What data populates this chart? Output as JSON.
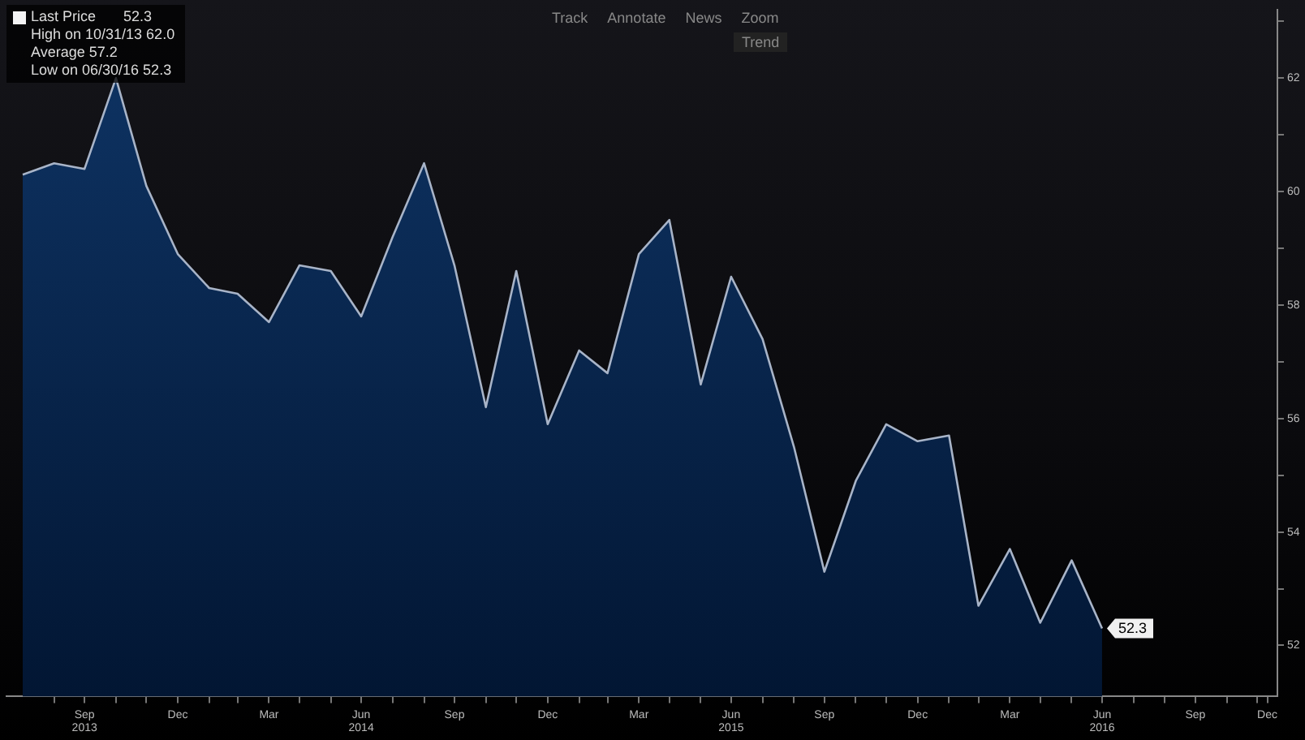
{
  "chart_data": {
    "type": "area",
    "x": [
      "2013-07-31",
      "2013-08-31",
      "2013-09-30",
      "2013-10-31",
      "2013-11-30",
      "2013-12-31",
      "2014-01-31",
      "2014-02-28",
      "2014-03-31",
      "2014-04-30",
      "2014-05-31",
      "2014-06-30",
      "2014-07-31",
      "2014-08-31",
      "2014-09-30",
      "2014-10-31",
      "2014-11-30",
      "2014-12-31",
      "2015-01-31",
      "2015-02-28",
      "2015-03-31",
      "2015-04-30",
      "2015-05-31",
      "2015-06-30",
      "2015-07-31",
      "2015-08-31",
      "2015-09-30",
      "2015-10-31",
      "2015-11-30",
      "2015-12-31",
      "2016-01-31",
      "2016-02-29",
      "2016-03-31",
      "2016-04-30",
      "2016-05-31",
      "2016-06-30"
    ],
    "series": [
      {
        "name": "Last Price",
        "color": "#0f3566",
        "values": [
          60.3,
          60.5,
          60.4,
          62.0,
          60.1,
          58.9,
          58.3,
          58.2,
          57.7,
          58.7,
          58.6,
          57.8,
          59.2,
          60.5,
          58.7,
          56.2,
          58.6,
          55.9,
          57.2,
          56.8,
          58.9,
          59.5,
          56.6,
          58.5,
          57.4,
          55.5,
          53.3,
          54.9,
          55.9,
          55.6,
          55.7,
          52.7,
          53.7,
          52.4,
          53.5,
          52.3
        ],
        "value_labels": [
          null,
          null,
          null,
          null,
          null,
          null,
          null,
          null,
          null,
          null,
          null,
          null,
          null,
          null,
          null,
          null,
          null,
          null,
          null,
          null,
          null,
          null,
          null,
          null,
          null,
          null,
          null,
          null,
          null,
          null,
          null,
          null,
          null,
          null,
          null,
          "52.3"
        ]
      }
    ],
    "xlim": [
      "2013-07-15",
      "2016-12-20"
    ],
    "xticks": [
      {
        "value": "2013-08-31",
        "label": null
      },
      {
        "value": "2013-09-30",
        "label": "Sep 2013"
      },
      {
        "value": "2013-10-31",
        "label": null
      },
      {
        "value": "2013-11-30",
        "label": null
      },
      {
        "value": "2013-12-31",
        "label": "Dec"
      },
      {
        "value": "2014-01-31",
        "label": null
      },
      {
        "value": "2014-02-28",
        "label": null
      },
      {
        "value": "2014-03-31",
        "label": "Mar"
      },
      {
        "value": "2014-04-30",
        "label": null
      },
      {
        "value": "2014-05-31",
        "label": null
      },
      {
        "value": "2014-06-30",
        "label": "Jun 2014"
      },
      {
        "value": "2014-07-31",
        "label": null
      },
      {
        "value": "2014-08-31",
        "label": null
      },
      {
        "value": "2014-09-30",
        "label": "Sep"
      },
      {
        "value": "2014-10-31",
        "label": null
      },
      {
        "value": "2014-11-30",
        "label": null
      },
      {
        "value": "2014-12-31",
        "label": "Dec"
      },
      {
        "value": "2015-01-31",
        "label": null
      },
      {
        "value": "2015-02-28",
        "label": null
      },
      {
        "value": "2015-03-31",
        "label": "Mar"
      },
      {
        "value": "2015-04-30",
        "label": null
      },
      {
        "value": "2015-05-31",
        "label": null
      },
      {
        "value": "2015-06-30",
        "label": "Jun 2015"
      },
      {
        "value": "2015-07-31",
        "label": null
      },
      {
        "value": "2015-08-31",
        "label": null
      },
      {
        "value": "2015-09-30",
        "label": "Sep"
      },
      {
        "value": "2015-10-31",
        "label": null
      },
      {
        "value": "2015-11-30",
        "label": null
      },
      {
        "value": "2015-12-31",
        "label": "Dec"
      },
      {
        "value": "2016-01-31",
        "label": null
      },
      {
        "value": "2016-02-29",
        "label": null
      },
      {
        "value": "2016-03-31",
        "label": "Mar"
      },
      {
        "value": "2016-04-30",
        "label": null
      },
      {
        "value": "2016-05-31",
        "label": null
      },
      {
        "value": "2016-06-30",
        "label": "Jun 2016"
      },
      {
        "value": "2016-07-31",
        "label": null
      },
      {
        "value": "2016-08-31",
        "label": null
      },
      {
        "value": "2016-09-30",
        "label": "Sep"
      },
      {
        "value": "2016-10-31",
        "label": null
      },
      {
        "value": "2016-11-30",
        "label": null
      },
      {
        "value": "2016-12-10",
        "label": "Dec"
      }
    ],
    "ylim": [
      51.1,
      63.2
    ],
    "yticks": [
      52,
      {
        "value": 53,
        "label": null
      },
      54,
      {
        "value": 55,
        "label": null
      },
      56,
      {
        "value": 57,
        "label": null
      },
      58,
      {
        "value": 59,
        "label": null
      },
      60,
      {
        "value": 61,
        "label": null
      },
      62,
      {
        "value": 63,
        "label": null
      }
    ],
    "grid": false,
    "legend": "top left",
    "annotations": [
      "High on 10/31/13 62.0",
      "Average 57.2",
      "Low on 06/30/16 52.3",
      "Track",
      "Annotate",
      "News",
      "Zoom",
      "Trend"
    ]
  }
}
